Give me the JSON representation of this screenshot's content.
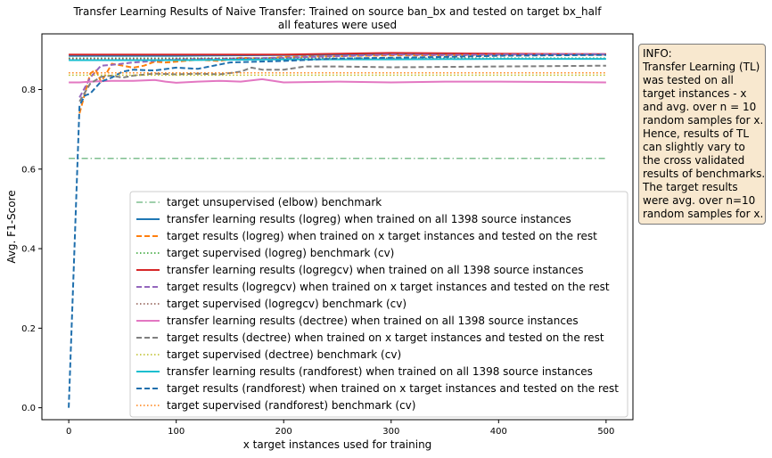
{
  "chart_data": {
    "type": "line",
    "title": [
      "Transfer Learning Results of Naive Transfer: Trained on source ban_bx and tested on target bx_half",
      "all features were used"
    ],
    "xlabel": "x target instances used for training",
    "ylabel": "Avg. F1-Score",
    "xlim": [
      -25,
      525
    ],
    "ylim": [
      -0.03,
      0.94
    ],
    "xticks": [
      0,
      100,
      200,
      300,
      400,
      500
    ],
    "yticks": [
      0.0,
      0.2,
      0.4,
      0.6,
      0.8
    ],
    "xtick_labels": [
      "0",
      "100",
      "200",
      "300",
      "400",
      "500"
    ],
    "ytick_labels": [
      "0.0",
      "0.2",
      "0.4",
      "0.6",
      "0.8"
    ],
    "grid": false,
    "legend_placement": "lower-right",
    "series": [
      {
        "name": "target unsupervised (elbow) benchmark",
        "color": "#7fbf8f",
        "style": "dashdot",
        "x": [
          0,
          500
        ],
        "y": [
          0.627,
          0.627
        ]
      },
      {
        "name": "transfer learning results (logreg) when trained on all 1398 source instances",
        "color": "#1f77b4",
        "style": "solid",
        "x": [
          0,
          100,
          200,
          300,
          400,
          500
        ],
        "y": [
          0.885,
          0.885,
          0.887,
          0.889,
          0.889,
          0.888
        ]
      },
      {
        "name": "target results (logreg) when trained on x target instances and tested on the rest",
        "color": "#ff7f0e",
        "style": "dashed",
        "x": [
          10,
          15,
          20,
          25,
          30,
          35,
          40,
          50,
          60,
          70,
          80,
          90,
          100,
          120,
          140,
          160,
          180,
          200,
          250,
          300,
          350,
          400,
          450,
          500
        ],
        "y": [
          0.74,
          0.79,
          0.84,
          0.85,
          0.82,
          0.84,
          0.865,
          0.86,
          0.855,
          0.86,
          0.87,
          0.868,
          0.87,
          0.875,
          0.872,
          0.88,
          0.878,
          0.882,
          0.884,
          0.886,
          0.886,
          0.887,
          0.888,
          0.888
        ]
      },
      {
        "name": "target supervised (logreg) benchmark (cv)",
        "color": "#2ca02c",
        "style": "dotted",
        "x": [
          0,
          500
        ],
        "y": [
          0.879,
          0.879
        ]
      },
      {
        "name": "transfer learning results (logregcv) when trained on all 1398 source instances",
        "color": "#d62728",
        "style": "solid",
        "x": [
          0,
          100,
          200,
          300,
          400,
          500
        ],
        "y": [
          0.888,
          0.888,
          0.888,
          0.892,
          0.89,
          0.889
        ]
      },
      {
        "name": "target results (logregcv) when trained on x target instances and tested on the rest",
        "color": "#9467bd",
        "style": "dashed",
        "x": [
          10,
          20,
          30,
          40,
          60,
          80,
          100,
          150,
          200,
          250,
          300,
          350,
          400,
          450,
          500
        ],
        "y": [
          0.78,
          0.83,
          0.86,
          0.862,
          0.868,
          0.872,
          0.876,
          0.878,
          0.88,
          0.884,
          0.888,
          0.887,
          0.888,
          0.889,
          0.889
        ]
      },
      {
        "name": "target supervised (logregcv) benchmark (cv)",
        "color": "#8c564b",
        "style": "dotted",
        "x": [
          0,
          500
        ],
        "y": [
          0.878,
          0.878
        ]
      },
      {
        "name": "transfer learning results (dectree) when trained on all 1398 source instances",
        "color": "#e377c2",
        "style": "solid",
        "x": [
          0,
          10,
          20,
          40,
          60,
          80,
          90,
          100,
          120,
          140,
          160,
          180,
          200,
          250,
          300,
          350,
          400,
          450,
          500
        ],
        "y": [
          0.818,
          0.818,
          0.82,
          0.822,
          0.822,
          0.824,
          0.82,
          0.817,
          0.82,
          0.822,
          0.82,
          0.826,
          0.818,
          0.82,
          0.818,
          0.82,
          0.82,
          0.819,
          0.818
        ]
      },
      {
        "name": "target results (dectree) when trained on x target instances and tested on the rest",
        "color": "#7f7f7f",
        "style": "dashed",
        "x": [
          10,
          20,
          30,
          40,
          50,
          60,
          80,
          100,
          120,
          140,
          160,
          170,
          180,
          200,
          220,
          250,
          300,
          350,
          400,
          450,
          500
        ],
        "y": [
          0.77,
          0.815,
          0.832,
          0.835,
          0.83,
          0.835,
          0.84,
          0.838,
          0.84,
          0.838,
          0.845,
          0.855,
          0.85,
          0.85,
          0.858,
          0.858,
          0.856,
          0.857,
          0.858,
          0.859,
          0.86
        ]
      },
      {
        "name": "target supervised (dectree) benchmark (cv)",
        "color": "#bcbd22",
        "style": "dotted",
        "x": [
          0,
          500
        ],
        "y": [
          0.836,
          0.836
        ]
      },
      {
        "name": "transfer learning results (randforest) when trained on all 1398 source instances",
        "color": "#17becf",
        "style": "solid",
        "x": [
          0,
          100,
          200,
          300,
          400,
          500
        ],
        "y": [
          0.874,
          0.874,
          0.876,
          0.876,
          0.877,
          0.877
        ]
      },
      {
        "name": "target results (randforest) when trained on x target instances and tested on the rest",
        "color": "#1f6fad",
        "style": "dashed",
        "x": [
          0,
          5,
          10,
          15,
          20,
          30,
          40,
          50,
          60,
          80,
          100,
          120,
          150,
          200,
          250,
          300,
          350,
          400,
          450,
          500
        ],
        "y": [
          0.0,
          0.38,
          0.76,
          0.785,
          0.79,
          0.82,
          0.83,
          0.845,
          0.85,
          0.848,
          0.855,
          0.852,
          0.868,
          0.872,
          0.878,
          0.88,
          0.882,
          0.885,
          0.886,
          0.887
        ]
      },
      {
        "name": "target supervised (randforest) benchmark (cv)",
        "color": "#ff7f0e",
        "style": "dotted",
        "x": [
          0,
          500
        ],
        "y": [
          0.842,
          0.842
        ]
      }
    ]
  },
  "info": {
    "lines": [
      "INFO:",
      "Transfer Learning (TL)",
      "was tested on all",
      "target instances - x",
      "and avg. over n = 10",
      "random samples for x.",
      "Hence, results of TL",
      "can slightly vary to",
      "the cross validated",
      "results of benchmarks.",
      "The target results",
      "were avg. over n=10",
      "random samples for x."
    ]
  }
}
